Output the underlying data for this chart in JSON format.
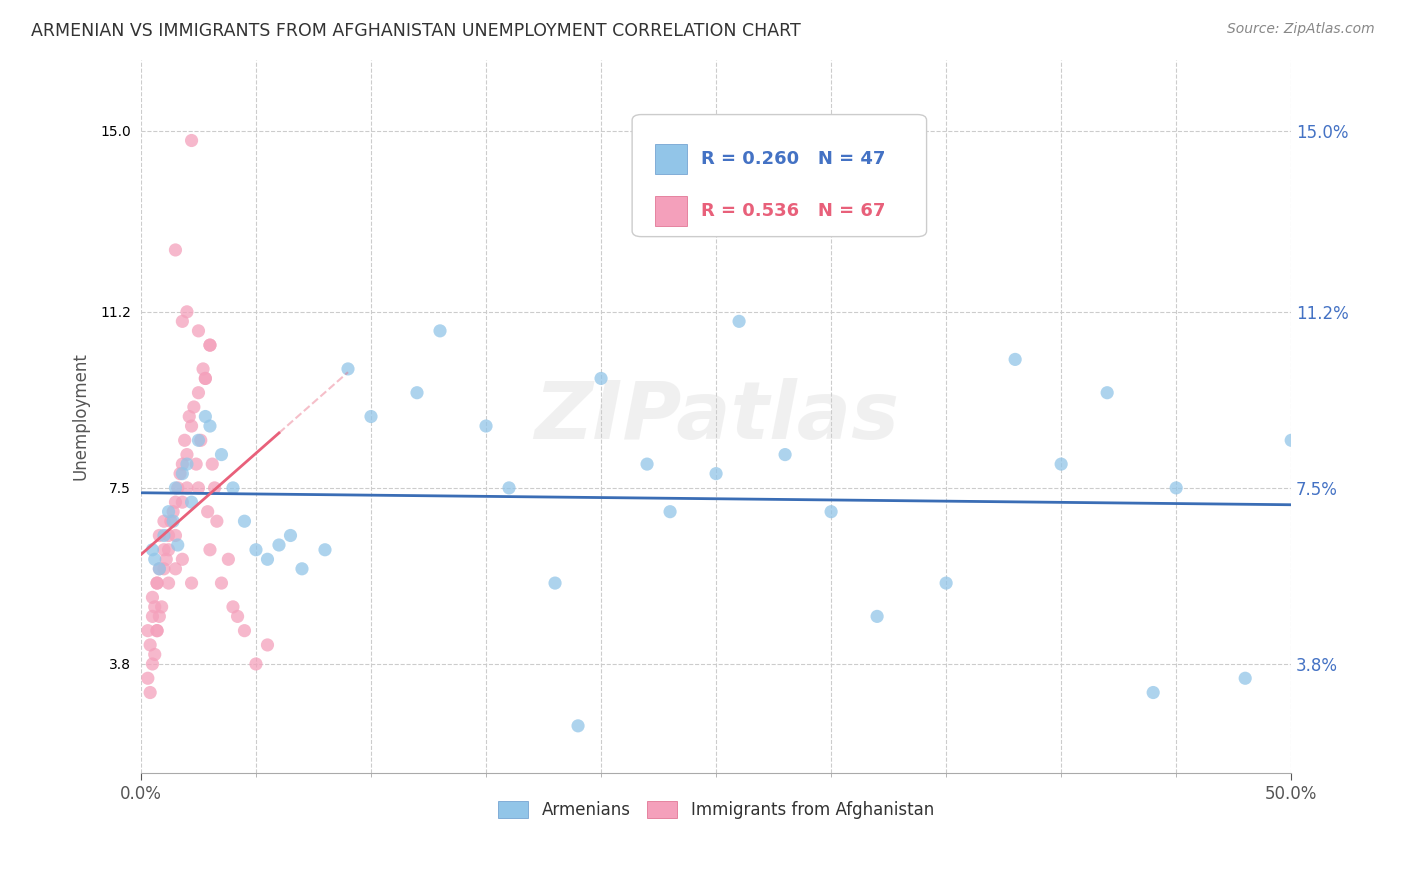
{
  "title": "ARMENIAN VS IMMIGRANTS FROM AFGHANISTAN UNEMPLOYMENT CORRELATION CHART",
  "source": "Source: ZipAtlas.com",
  "ylabel": "Unemployment",
  "ytick_vals": [
    3.8,
    7.5,
    11.2,
    15.0
  ],
  "xlim": [
    0.0,
    50.0
  ],
  "ylim": [
    1.5,
    16.5
  ],
  "legend_armenians_R": "R = 0.260",
  "legend_armenians_N": "N = 47",
  "legend_afghan_R": "R = 0.536",
  "legend_afghan_N": "N = 67",
  "color_armenians": "#92C5E8",
  "color_afghan": "#F4A0BB",
  "color_line_armenians": "#3A6DB5",
  "color_line_afghan": "#E8607A",
  "watermark": "ZIPatlas",
  "background_color": "#FFFFFF",
  "armenians_x": [
    0.5,
    0.6,
    0.8,
    1.0,
    1.2,
    1.4,
    1.5,
    1.6,
    1.8,
    2.0,
    2.2,
    2.5,
    2.8,
    3.0,
    3.5,
    4.0,
    4.5,
    5.0,
    5.5,
    6.0,
    6.5,
    7.0,
    8.0,
    9.0,
    12.0,
    15.0,
    18.0,
    20.0,
    22.0,
    25.0,
    28.0,
    30.0,
    35.0,
    38.0,
    42.0,
    45.0,
    48.0,
    10.0,
    13.0,
    16.0,
    19.0,
    23.0,
    26.0,
    32.0,
    40.0,
    44.0,
    50.0
  ],
  "armenians_y": [
    6.2,
    6.0,
    5.8,
    6.5,
    7.0,
    6.8,
    7.5,
    6.3,
    7.8,
    8.0,
    7.2,
    8.5,
    9.0,
    8.8,
    8.2,
    7.5,
    6.8,
    6.2,
    6.0,
    6.3,
    6.5,
    5.8,
    6.2,
    10.0,
    9.5,
    8.8,
    5.5,
    9.8,
    8.0,
    7.8,
    8.2,
    7.0,
    5.5,
    10.2,
    9.5,
    7.5,
    3.5,
    9.0,
    10.8,
    7.5,
    2.5,
    7.0,
    11.0,
    4.8,
    8.0,
    3.2,
    8.5
  ],
  "afghan_x": [
    0.3,
    0.4,
    0.5,
    0.5,
    0.6,
    0.7,
    0.7,
    0.8,
    0.8,
    0.9,
    1.0,
    1.0,
    1.1,
    1.2,
    1.2,
    1.3,
    1.4,
    1.5,
    1.5,
    1.6,
    1.7,
    1.8,
    1.8,
    1.9,
    2.0,
    2.0,
    2.1,
    2.2,
    2.3,
    2.4,
    2.5,
    2.5,
    2.6,
    2.7,
    2.8,
    2.9,
    3.0,
    3.0,
    3.1,
    3.2,
    3.3,
    3.5,
    3.8,
    4.0,
    4.2,
    4.5,
    5.0,
    5.5,
    1.5,
    2.0,
    2.5,
    3.0,
    2.2,
    1.8,
    2.8,
    0.3,
    0.4,
    0.5,
    0.6,
    0.7,
    0.7,
    0.8,
    1.0,
    1.2,
    1.5,
    1.8,
    2.2
  ],
  "afghan_y": [
    4.5,
    4.2,
    4.8,
    5.2,
    5.0,
    4.5,
    5.5,
    4.8,
    5.8,
    5.0,
    5.8,
    6.2,
    6.0,
    6.5,
    5.5,
    6.8,
    7.0,
    7.2,
    6.5,
    7.5,
    7.8,
    7.2,
    8.0,
    8.5,
    8.2,
    7.5,
    9.0,
    8.8,
    9.2,
    8.0,
    7.5,
    9.5,
    8.5,
    10.0,
    9.8,
    7.0,
    10.5,
    6.2,
    8.0,
    7.5,
    6.8,
    5.5,
    6.0,
    5.0,
    4.8,
    4.5,
    3.8,
    4.2,
    12.5,
    11.2,
    10.8,
    10.5,
    14.8,
    11.0,
    9.8,
    3.5,
    3.2,
    3.8,
    4.0,
    4.5,
    5.5,
    6.5,
    6.8,
    6.2,
    5.8,
    6.0,
    5.5
  ]
}
